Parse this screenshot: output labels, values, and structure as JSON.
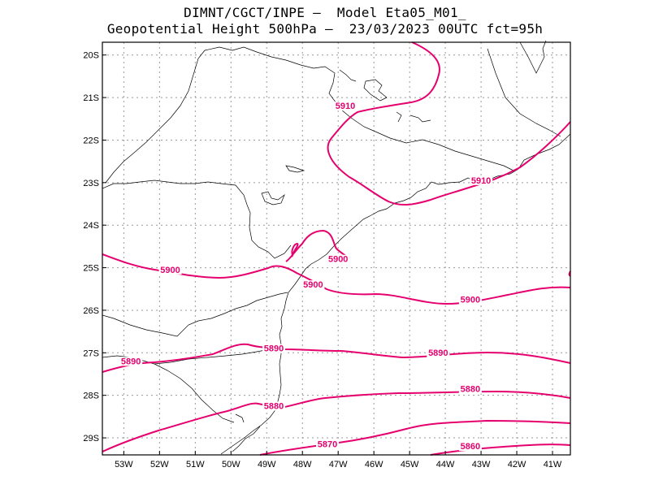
{
  "title": {
    "line1": "DIMNT/CGCT/INPE –  Model Eta05_M01_",
    "line2": "Geopotential Height 500hPa –  23/03/2023 00UTC fct=95h"
  },
  "axes": {
    "lon_labels": [
      "53W",
      "52W",
      "51W",
      "50W",
      "49W",
      "48W",
      "47W",
      "46W",
      "45W",
      "44W",
      "43W",
      "42W",
      "41W"
    ],
    "lat_labels": [
      "20S",
      "21S",
      "22S",
      "23S",
      "24S",
      "25S",
      "26S",
      "27S",
      "28S",
      "29S"
    ],
    "lon_range": [
      -53.6,
      -40.5
    ],
    "lat_range": [
      -29.4,
      -19.7
    ],
    "grid": "dotted"
  },
  "contour_color": "#e6006e",
  "contours": [
    {
      "value": 5910,
      "labels": [
        {
          "text": "5910",
          "lon": -46.8,
          "lat": -21.25
        },
        {
          "text": "5910",
          "lon": -43.0,
          "lat": -23.0
        }
      ]
    },
    {
      "value": 5900,
      "labels": [
        {
          "text": "5900",
          "lon": -51.7,
          "lat": -25.1
        },
        {
          "text": "5900",
          "lon": -47.0,
          "lat": -24.85
        },
        {
          "text": "5900",
          "lon": -47.7,
          "lat": -25.45
        },
        {
          "text": "5900",
          "lon": -43.3,
          "lat": -25.8
        }
      ]
    },
    {
      "value": 5890,
      "labels": [
        {
          "text": "5890",
          "lon": -52.8,
          "lat": -27.25
        },
        {
          "text": "5890",
          "lon": -48.8,
          "lat": -26.95
        },
        {
          "text": "5890",
          "lon": -44.2,
          "lat": -27.05
        }
      ]
    },
    {
      "value": 5880,
      "labels": [
        {
          "text": "5880",
          "lon": -48.8,
          "lat": -28.3
        },
        {
          "text": "5880",
          "lon": -43.3,
          "lat": -27.9
        }
      ]
    },
    {
      "value": 5870,
      "labels": [
        {
          "text": "5870",
          "lon": -47.3,
          "lat": -29.2
        }
      ]
    },
    {
      "value": 5860,
      "labels": [
        {
          "text": "5860",
          "lon": -43.3,
          "lat": -29.25
        }
      ]
    }
  ]
}
